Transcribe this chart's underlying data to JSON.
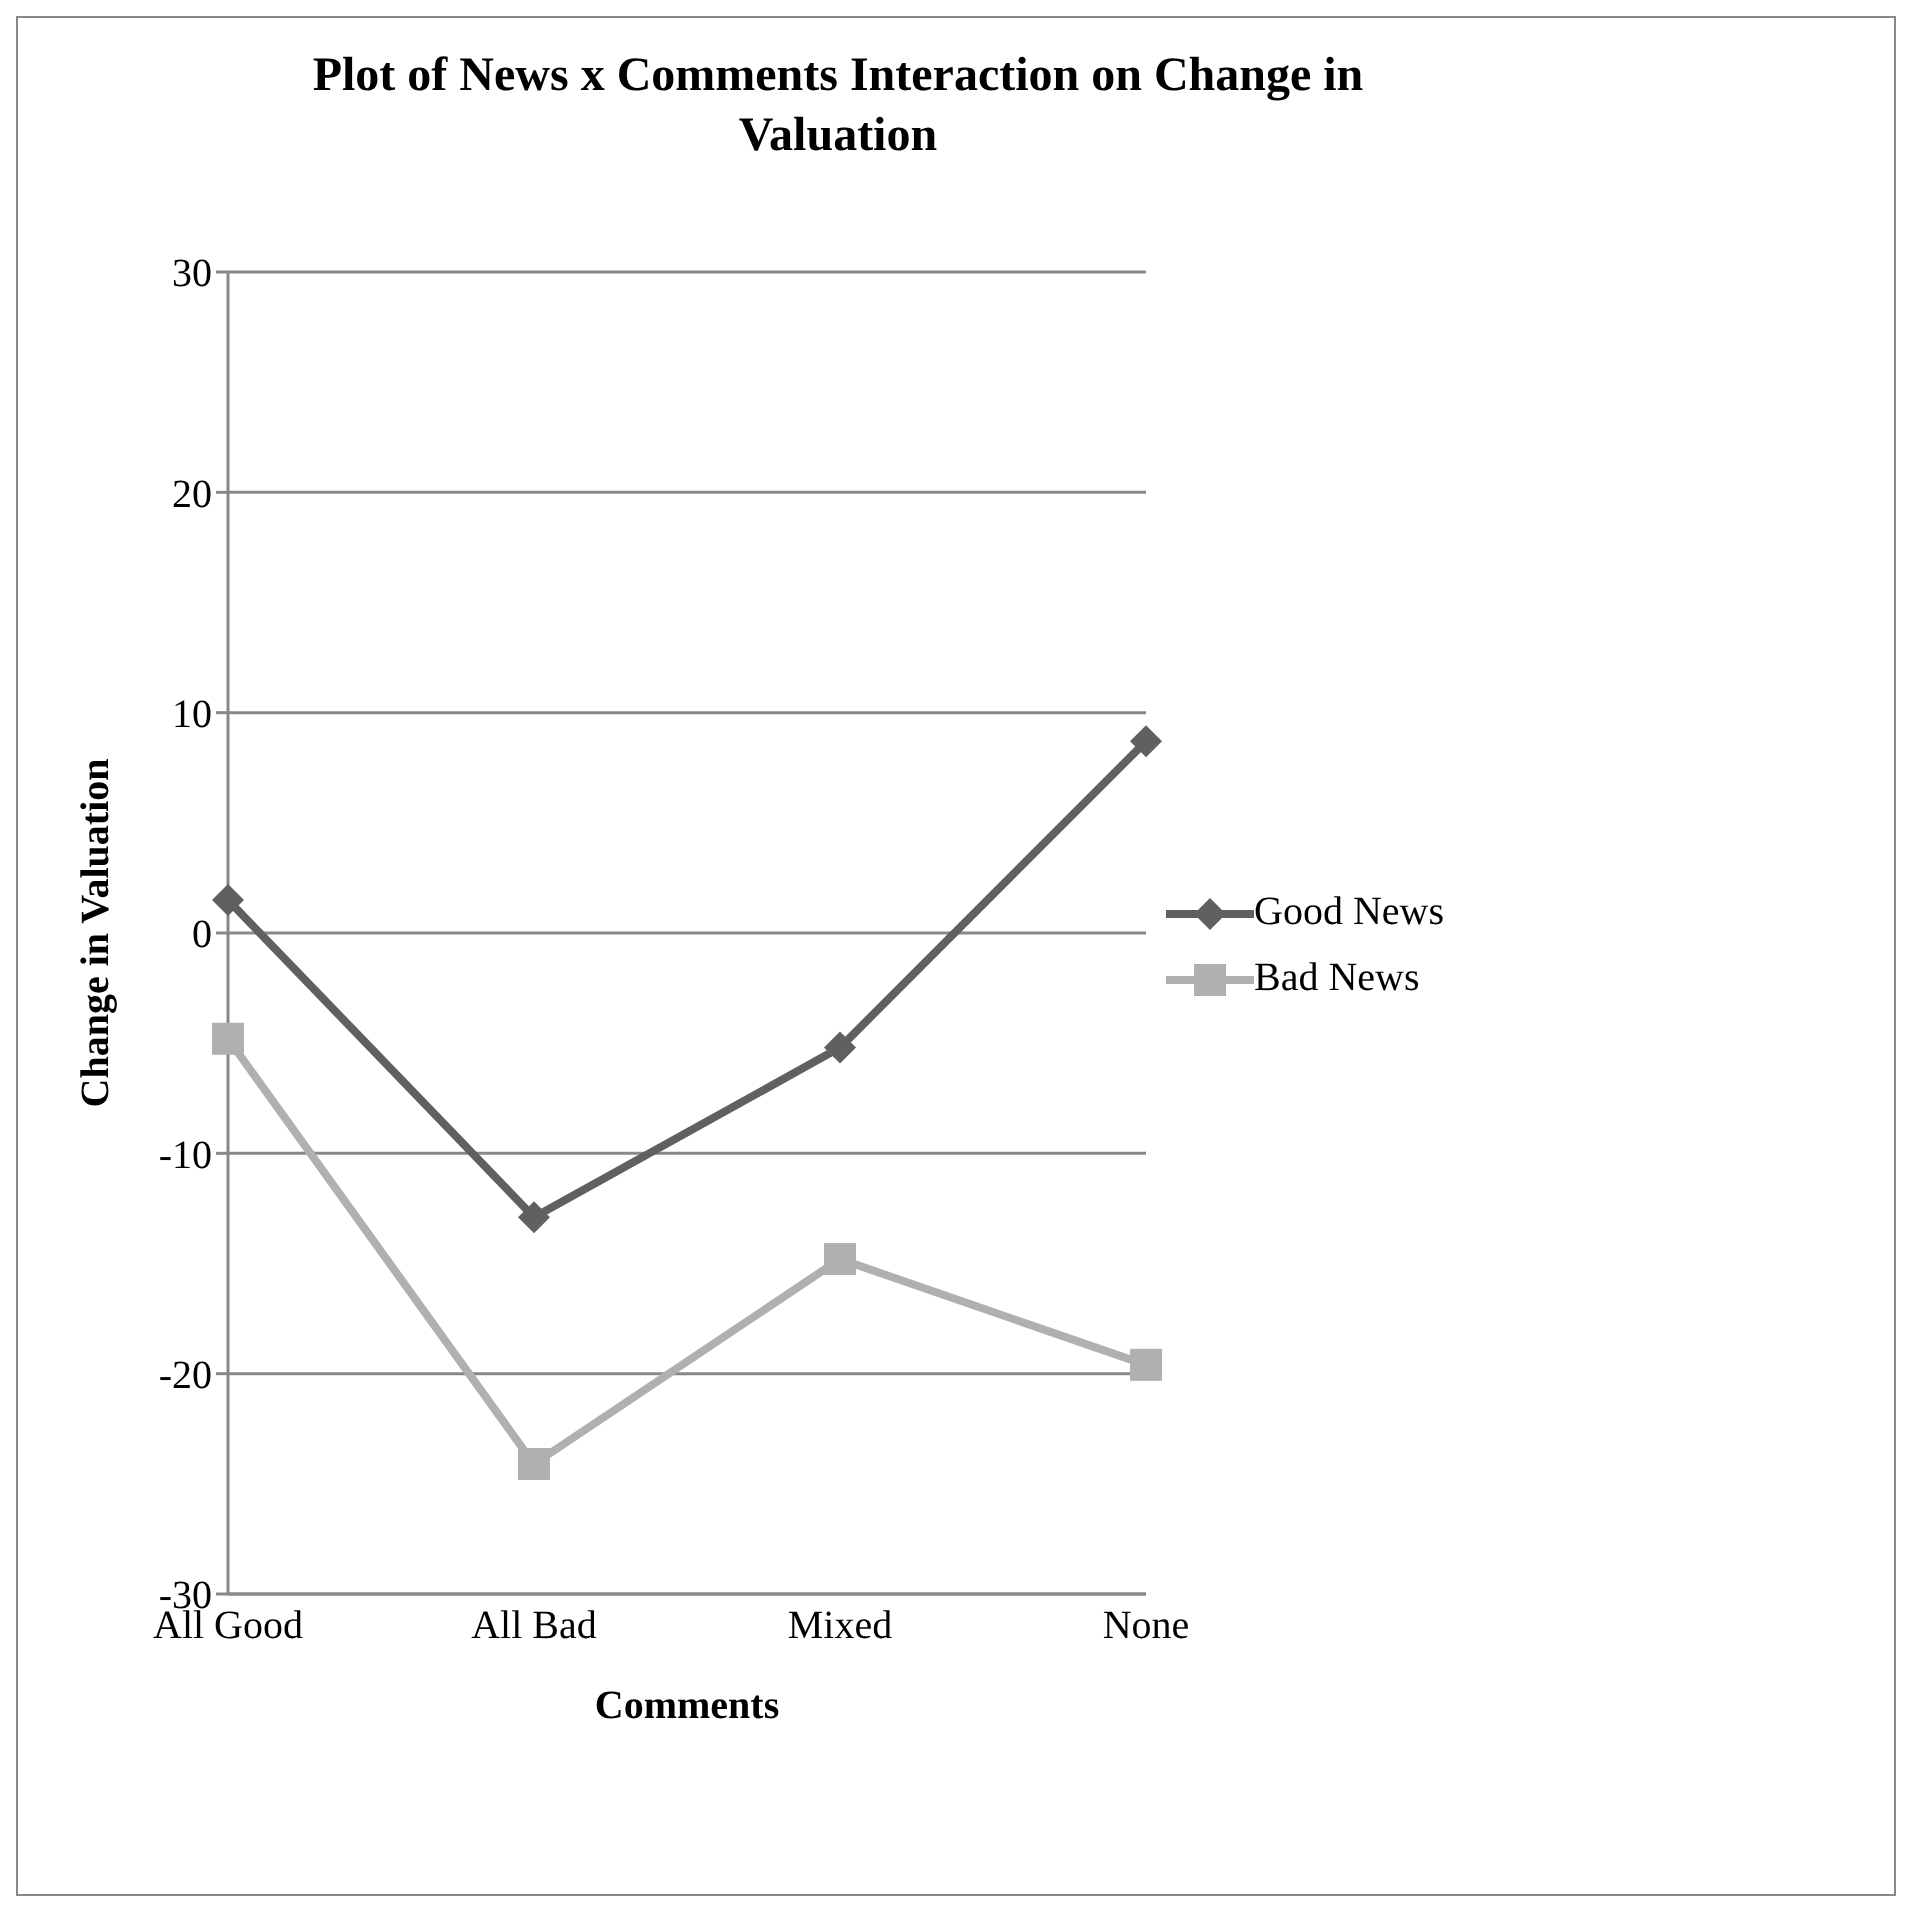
{
  "chart_data": {
    "type": "line",
    "title": "Plot of News x Comments Interaction on Change in Valuation",
    "xlabel": "Comments",
    "ylabel": "Change in Valuation",
    "categories": [
      "All Good",
      "All Bad",
      "Mixed",
      "None"
    ],
    "series": [
      {
        "name": "Good News",
        "color": "#606060",
        "marker": "diamond",
        "values": [
          1.5,
          -12.9,
          -5.2,
          8.7
        ]
      },
      {
        "name": "Bad News",
        "color": "#b0b0b0",
        "marker": "square",
        "values": [
          -4.8,
          -24.1,
          -14.8,
          -19.6
        ]
      }
    ],
    "ylim": [
      -30,
      30
    ],
    "yticks": [
      -30,
      -20,
      -10,
      0,
      10,
      20,
      30
    ],
    "grid": "y",
    "legend": "right"
  }
}
